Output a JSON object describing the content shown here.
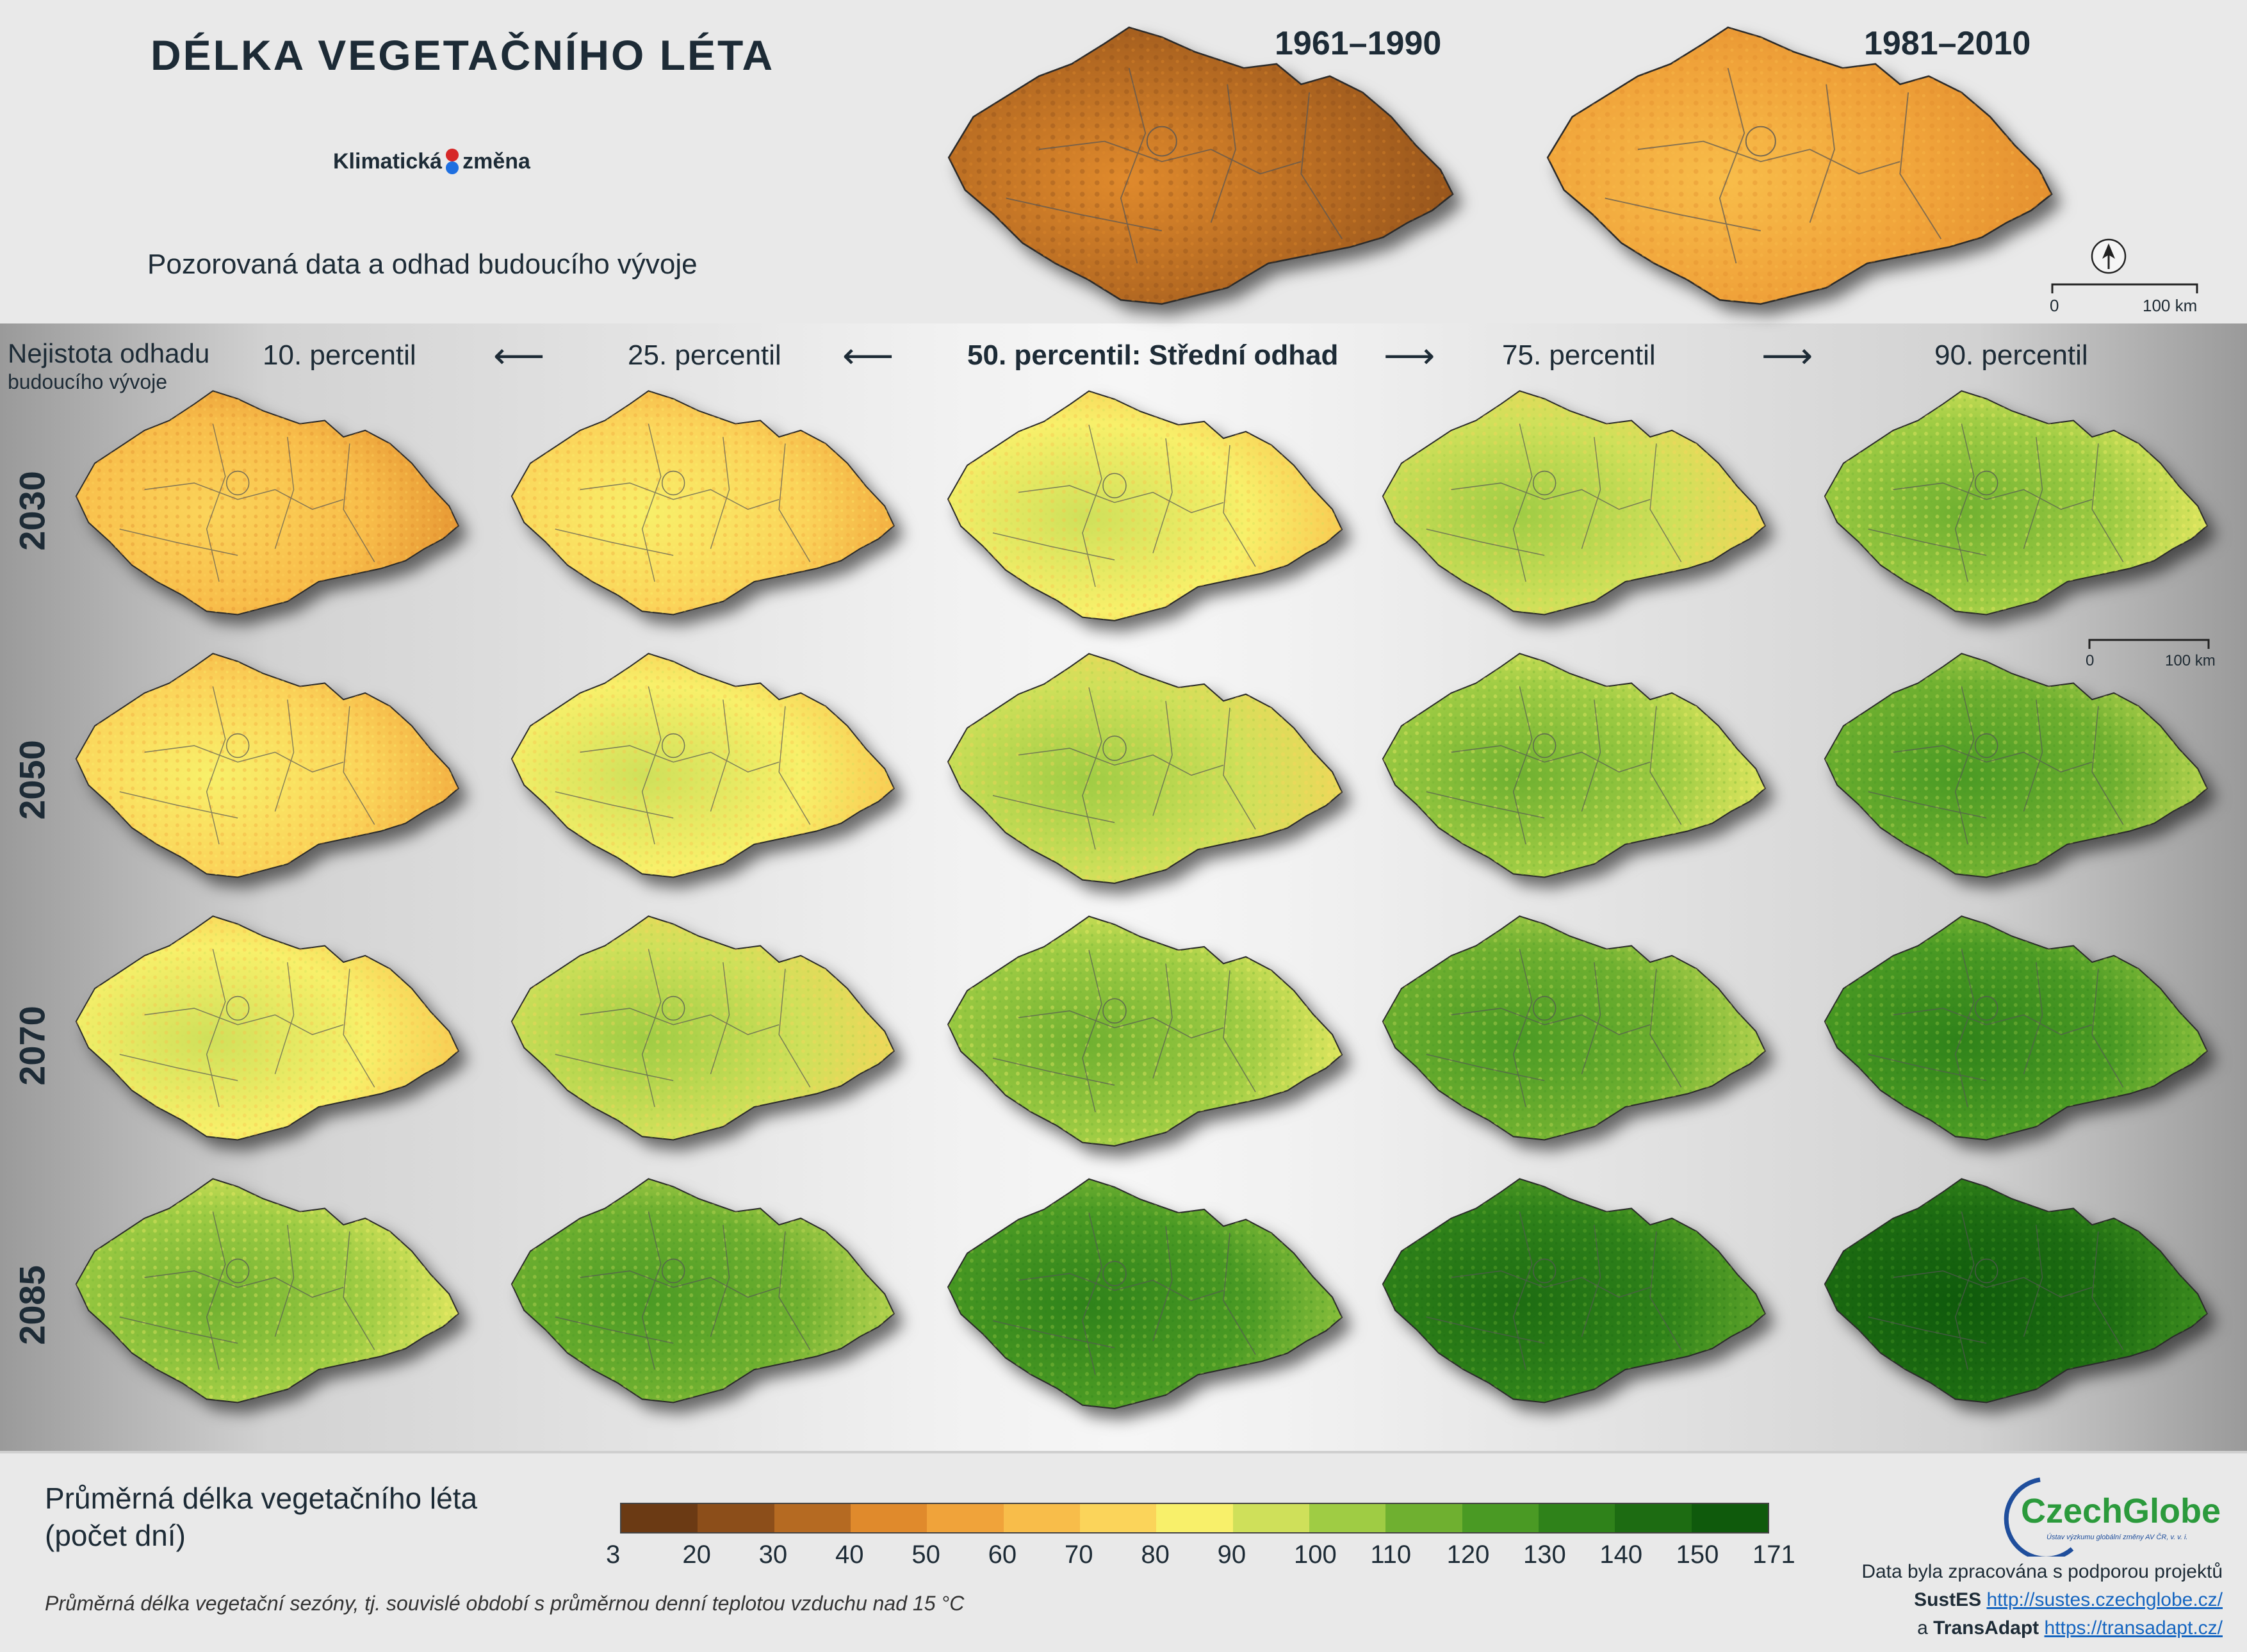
{
  "header": {
    "title": "DÉLKA VEGETAČNÍHO LÉTA",
    "logo_left": "Klimatická",
    "logo_right": "změna",
    "subtitle": "Pozorovaná data a odhad budoucího vývoje",
    "periods": [
      "1961–1990",
      "1981–2010"
    ],
    "scale_start": "0",
    "scale_end": "100 km"
  },
  "grid": {
    "uncertainty_title": "Nejistota odhadu",
    "uncertainty_subtitle": "budoucího vývoje",
    "columns": [
      "10. percentil",
      "25. percentil",
      "50. percentil: Střední odhad",
      "75. percentil",
      "90. percentil"
    ],
    "rows": [
      "2030",
      "2050",
      "2070",
      "2085"
    ],
    "scale_start": "0",
    "scale_end": "100 km"
  },
  "legend": {
    "title_line1": "Průměrná délka vegetačního léta",
    "title_line2": "(počet dní)",
    "ticks": [
      "3",
      "20",
      "30",
      "40",
      "50",
      "60",
      "70",
      "80",
      "90",
      "100",
      "110",
      "120",
      "130",
      "140",
      "150",
      "171"
    ],
    "colors": [
      "#6b3a14",
      "#8c4e1a",
      "#b56a22",
      "#e08a2c",
      "#f0a33a",
      "#f8bd4a",
      "#fbd45a",
      "#f8f06a",
      "#cfe05a",
      "#9fcc44",
      "#6fb030",
      "#4a9a24",
      "#2f821a",
      "#1d6c12",
      "#0f5a0c"
    ],
    "footnote": "Průměrná délka vegetační sezóny, tj. souvislé období s průměrnou denní teplotou vzduchu nad 15 °C"
  },
  "credits": {
    "org": "CzechGlobe",
    "org_sub": "Ústav výzkumu globální změny AV ČR, v. v. i.",
    "line1": "Data byla zpracována s podporou projektů",
    "proj1": "SustES",
    "link1": "http://sustes.czechglobe.cz/",
    "conj": "a",
    "proj2": "TransAdapt",
    "link2": "https://transadapt.cz/"
  }
}
